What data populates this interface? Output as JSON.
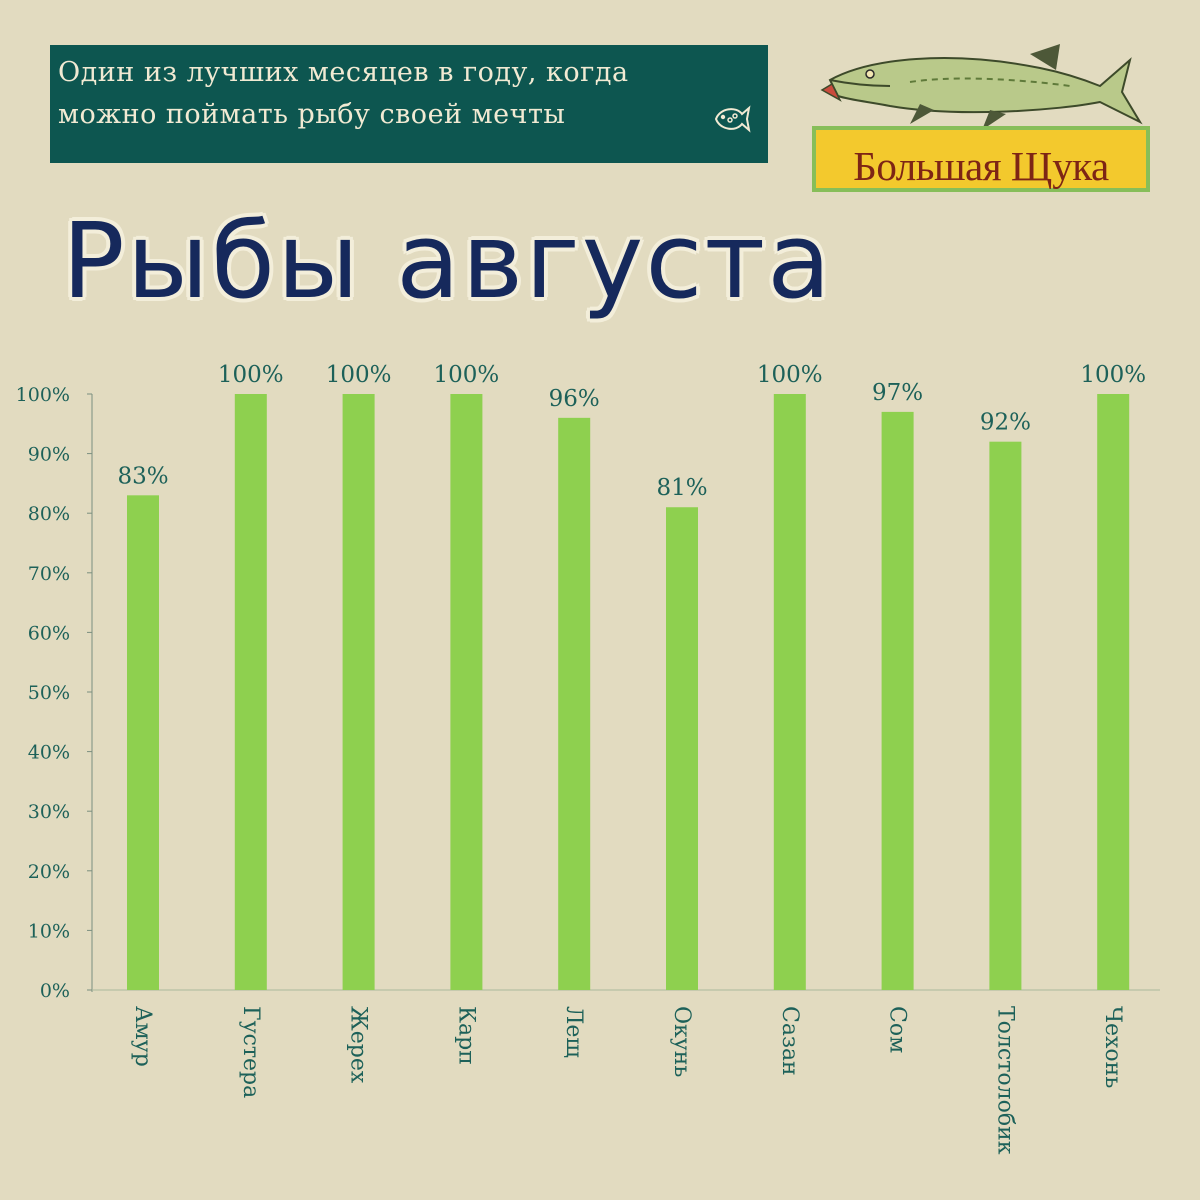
{
  "banner": {
    "line1": "Один из лучших месяцев в году, когда",
    "line2": "можно поймать рыбу своей мечты",
    "icon": "fish-icon"
  },
  "logo": {
    "text": "Большая Щука",
    "icon": "pike-icon"
  },
  "title": "Рыбы августа",
  "colors": {
    "background": "#e2dbc0",
    "bar": "#8ed04f",
    "banner": "#0d5650",
    "title": "#16295c",
    "text": "#1d6159"
  },
  "chart_data": {
    "type": "bar",
    "title": "Рыбы августа",
    "categories": [
      "Амур",
      "Густера",
      "Жерех",
      "Карп",
      "Лещ",
      "Окунь",
      "Сазан",
      "Сом",
      "Толстолобик",
      "Чехонь"
    ],
    "values": [
      83,
      100,
      100,
      100,
      96,
      81,
      100,
      97,
      92,
      100
    ],
    "value_labels": [
      "83%",
      "100%",
      "100%",
      "100%",
      "96%",
      "81%",
      "100%",
      "97%",
      "92%",
      "100%"
    ],
    "yticks": [
      "0%",
      "10%",
      "20%",
      "30%",
      "40%",
      "50%",
      "60%",
      "70%",
      "80%",
      "90%",
      "100%"
    ],
    "ylim": [
      0,
      100
    ],
    "grid": false,
    "legend": "none",
    "xlabel": "",
    "ylabel": ""
  }
}
